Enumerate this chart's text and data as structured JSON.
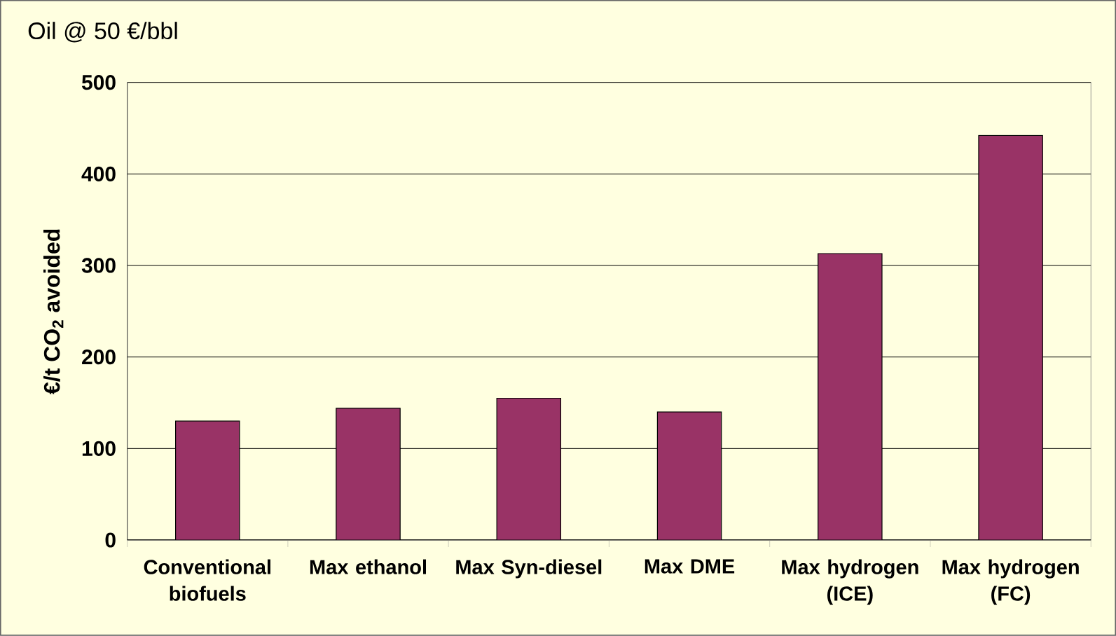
{
  "chart_data": {
    "type": "bar",
    "title": "Oil @ 50 €/bbl",
    "ylabel": "€/t CO$_{2}$ avoided",
    "categories": [
      "Conventional biofuels",
      "Max ethanol",
      "Max Syn-diesel",
      "Max DME",
      "Max hydrogen (ICE)",
      "Max hydrogen (FC)"
    ],
    "values": [
      130,
      144,
      155,
      140,
      313,
      442
    ],
    "color": "#993366",
    "ylim": [
      0,
      500
    ],
    "yticks": [
      0,
      100,
      200,
      300,
      400,
      500
    ],
    "grid": "y"
  }
}
